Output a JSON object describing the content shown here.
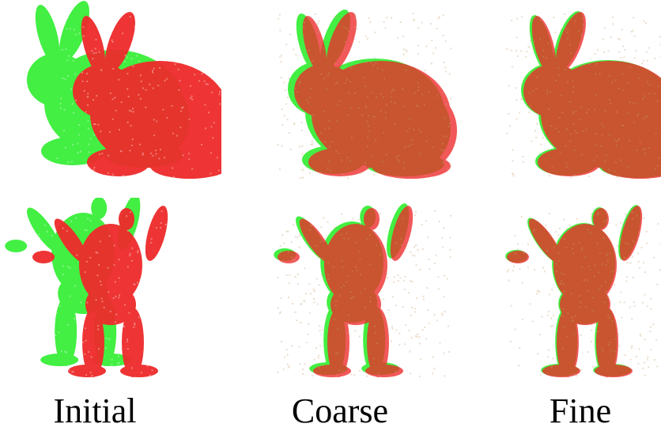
{
  "columns": [
    {
      "label": "Initial",
      "misalign": [
        -58,
        -14
      ]
    },
    {
      "label": "Coarse",
      "misalign": [
        -8,
        -3
      ]
    },
    {
      "label": "Fine",
      "misalign": [
        -3,
        -1
      ]
    }
  ],
  "colors": {
    "source": "#33ee33",
    "target": "#ee2a2a",
    "blend": "#c8a070",
    "background": "#ffffff"
  },
  "objects": [
    "bunny-point-cloud",
    "armadillo-point-cloud"
  ]
}
